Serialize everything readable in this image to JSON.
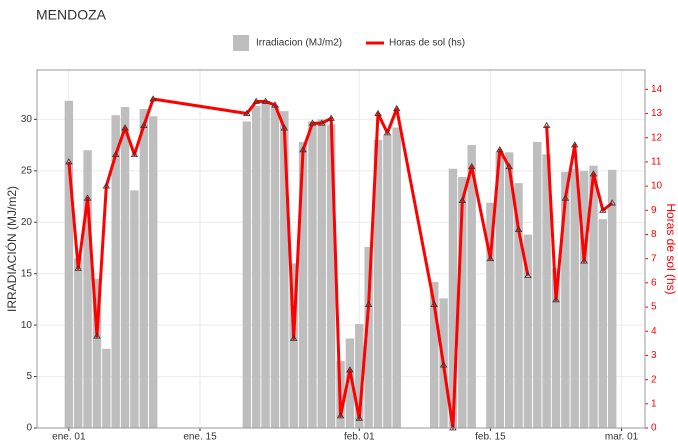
{
  "chart_data": {
    "type": "bar",
    "title": "MENDOZA",
    "ylabel": "IRRADIACIÓN (MJ/m2)",
    "y2label": "Horas de sol (hs)",
    "x": [
      0,
      1,
      2,
      3,
      4,
      5,
      6,
      7,
      8,
      9,
      19,
      20,
      21,
      22,
      23,
      24,
      25,
      26,
      27,
      28,
      29,
      30,
      31,
      32,
      33,
      34,
      35,
      39,
      40,
      41,
      42,
      43,
      45,
      46,
      47,
      48,
      49,
      50,
      51,
      52,
      53,
      54,
      55,
      56,
      57,
      58
    ],
    "xlim": [
      -3.4,
      61.5
    ],
    "xticks": [
      {
        "value": 0,
        "label": "ene. 01"
      },
      {
        "value": 14,
        "label": "ene. 15"
      },
      {
        "value": 31,
        "label": "feb. 01"
      },
      {
        "value": 45,
        "label": "feb. 15"
      },
      {
        "value": 59,
        "label": "mar. 01"
      }
    ],
    "ylim": [
      0,
      34.8
    ],
    "yticks": [
      0,
      5,
      10,
      15,
      20,
      25,
      30
    ],
    "y2lim": [
      0,
      14.8
    ],
    "y2ticks": [
      0,
      1,
      2,
      3,
      4,
      5,
      6,
      7,
      8,
      9,
      10,
      11,
      12,
      13,
      14
    ],
    "grid": true,
    "legend": "top",
    "series": [
      {
        "name": "Irradiacion (MJ/m2)",
        "type": "bar",
        "color": "#bebebe",
        "values": [
          31.8,
          16.5,
          27.0,
          14.5,
          7.7,
          30.4,
          31.2,
          23.1,
          31.0,
          30.3,
          29.8,
          31.3,
          31.8,
          31.3,
          30.8,
          16.0,
          27.8,
          29.8,
          30.0,
          29.5,
          6.5,
          8.7,
          10.1,
          17.6,
          28.0,
          28.5,
          29.2,
          14.2,
          12.6,
          25.2,
          24.4,
          27.5,
          21.9,
          26.8,
          26.8,
          23.8,
          18.8,
          27.8,
          26.6,
          15.5,
          24.9,
          25.2,
          25.0,
          25.5,
          20.3,
          25.1
        ]
      },
      {
        "name": "Horas de sol (hs)",
        "type": "line",
        "axis": "y2",
        "color": "#ff0000",
        "values": [
          11.0,
          6.6,
          9.5,
          3.8,
          10.0,
          11.3,
          12.4,
          11.3,
          12.5,
          13.6,
          13.0,
          13.5,
          13.5,
          13.35,
          12.4,
          3.7,
          11.5,
          12.6,
          12.6,
          12.8,
          0.5,
          2.4,
          0.4,
          5.1,
          13.0,
          12.2,
          13.2,
          5.1,
          2.6,
          0.0,
          9.4,
          10.8,
          7.0,
          11.5,
          10.8,
          8.2,
          6.3,
          null,
          12.5,
          5.3,
          9.5,
          11.7,
          6.9,
          10.5,
          9.0,
          9.3
        ]
      }
    ]
  }
}
